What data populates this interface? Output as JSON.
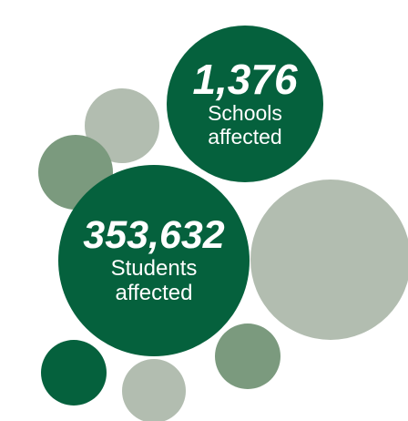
{
  "colors": {
    "dark_green": "#05613d",
    "mid_green": "#7b9a7e",
    "light_sage": "#b2bdb0"
  },
  "stats": {
    "schools": {
      "number": "1,376",
      "line1": "Schools",
      "line2": "affected"
    },
    "students": {
      "number": "353,632",
      "line1": "Students",
      "line2": "affected"
    }
  }
}
